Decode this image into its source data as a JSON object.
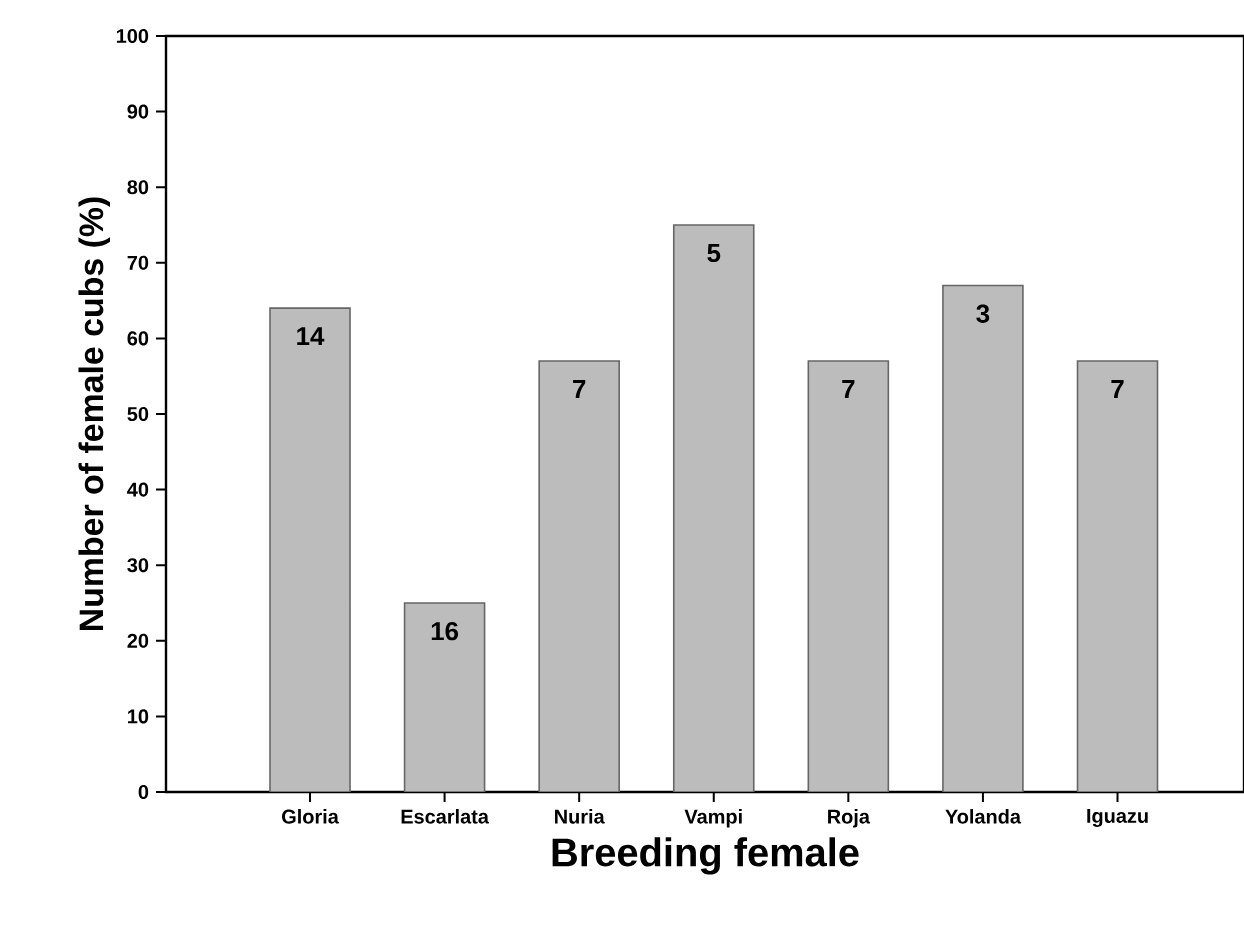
{
  "chart_data": {
    "type": "bar",
    "xlabel": "Breeding female",
    "ylabel": "Number of female cubs (%)",
    "categories": [
      "Gloria",
      "Escarlata",
      "Nuria",
      "Vampi",
      "Roja",
      "Yolanda",
      "Iguazu"
    ],
    "values": [
      64,
      25,
      57,
      75,
      57,
      67,
      57
    ],
    "annotations": [
      {
        "text": "14",
        "x": "Gloria",
        "y": 64
      },
      {
        "text": "16",
        "x": "Escarlata",
        "y": 25
      },
      {
        "text": "7",
        "x": "Nuria",
        "y": 57
      },
      {
        "text": "5",
        "x": "Vampi",
        "y": 75
      },
      {
        "text": "7",
        "x": "Roja",
        "y": 57
      },
      {
        "text": "3",
        "x": "Yolanda",
        "y": 67
      },
      {
        "text": "7",
        "x": "Iguazu",
        "y": 57
      }
    ],
    "color": "#bcbcbc",
    "ylim": [
      0,
      100
    ],
    "yticks": [
      0,
      10,
      20,
      30,
      40,
      50,
      60,
      70,
      80,
      90,
      100
    ],
    "grid": false
  }
}
